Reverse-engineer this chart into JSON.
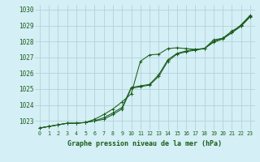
{
  "title": "Graphe pression niveau de la mer (hPa)",
  "background_color": "#d4eff5",
  "grid_color": "#aecdd6",
  "line_color": "#1a5c1a",
  "xlim": [
    -0.5,
    23.5
  ],
  "ylim": [
    1022.4,
    1030.3
  ],
  "yticks": [
    1023,
    1024,
    1025,
    1026,
    1027,
    1028,
    1029,
    1030
  ],
  "xticks": [
    0,
    1,
    2,
    3,
    4,
    5,
    6,
    7,
    8,
    9,
    10,
    11,
    12,
    13,
    14,
    15,
    16,
    17,
    18,
    19,
    20,
    21,
    22,
    23
  ],
  "series1_x": [
    0,
    1,
    2,
    3,
    4,
    5,
    6,
    7,
    8,
    9,
    10,
    11,
    12,
    13,
    14,
    15,
    16,
    17,
    18,
    19,
    20,
    21,
    22,
    23
  ],
  "series1_y": [
    1022.55,
    1022.65,
    1022.75,
    1022.85,
    1022.85,
    1022.9,
    1023.1,
    1023.4,
    1023.75,
    1024.2,
    1024.7,
    1026.75,
    1027.15,
    1027.2,
    1027.55,
    1027.6,
    1027.55,
    1027.5,
    1027.55,
    1028.1,
    1028.2,
    1028.55,
    1029.05,
    1029.65
  ],
  "series2_x": [
    0,
    1,
    2,
    3,
    4,
    5,
    6,
    7,
    8,
    9,
    10,
    11,
    12,
    13,
    14,
    15,
    16,
    17,
    18,
    19,
    20,
    21,
    22,
    23
  ],
  "series2_y": [
    1022.55,
    1022.65,
    1022.75,
    1022.85,
    1022.85,
    1022.9,
    1023.0,
    1023.2,
    1023.5,
    1023.85,
    1025.1,
    1025.2,
    1025.3,
    1025.9,
    1026.85,
    1027.25,
    1027.4,
    1027.5,
    1027.55,
    1028.0,
    1028.2,
    1028.65,
    1029.0,
    1029.6
  ],
  "series3_x": [
    0,
    1,
    2,
    3,
    4,
    5,
    6,
    7,
    8,
    9,
    10,
    11,
    12,
    13,
    14,
    15,
    16,
    17,
    18,
    19,
    20,
    21,
    22,
    23
  ],
  "series3_y": [
    1022.55,
    1022.65,
    1022.75,
    1022.85,
    1022.85,
    1022.9,
    1023.0,
    1023.1,
    1023.4,
    1023.75,
    1025.05,
    1025.15,
    1025.25,
    1025.8,
    1026.75,
    1027.2,
    1027.35,
    1027.45,
    1027.55,
    1027.95,
    1028.15,
    1028.55,
    1028.95,
    1029.55
  ]
}
